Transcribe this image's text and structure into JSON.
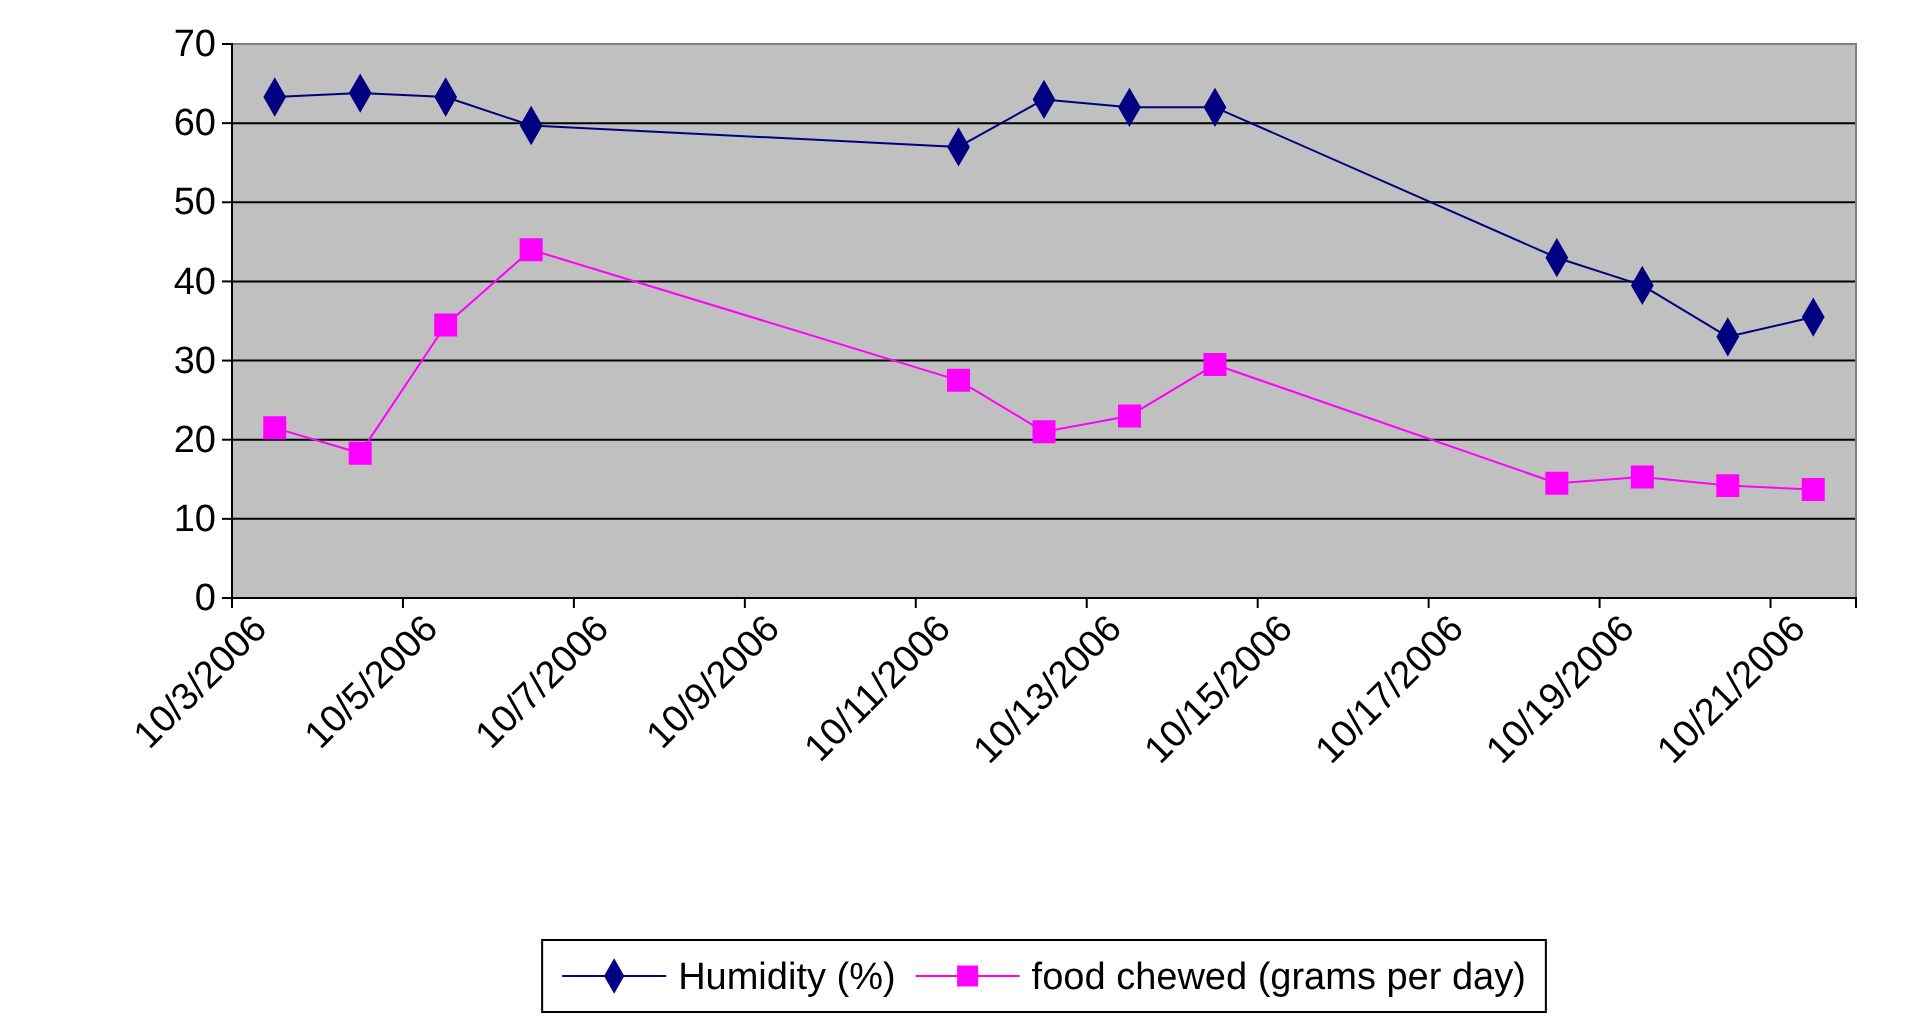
{
  "chart_data": {
    "type": "line",
    "x": [
      "2006-10-03T12:00",
      "2006-10-04T12:00",
      "2006-10-05T12:00",
      "2006-10-06T12:00",
      "2006-10-11T12:00",
      "2006-10-12T12:00",
      "2006-10-13T12:00",
      "2006-10-14T12:00",
      "2006-10-18T12:00",
      "2006-10-19T12:00",
      "2006-10-20T12:00",
      "2006-10-21T12:00"
    ],
    "series": [
      {
        "name": "Humidity (%)",
        "color": "#000080",
        "marker": "diamond",
        "values": [
          63.3,
          63.8,
          63.3,
          59.7,
          57,
          63,
          62,
          62,
          43,
          39.5,
          33,
          35.5
        ]
      },
      {
        "name": "food chewed (grams per day)",
        "color": "#ff00ff",
        "marker": "square",
        "values": [
          21.5,
          18.3,
          34.5,
          44,
          27.5,
          21,
          23,
          29.5,
          14.5,
          15.3,
          14.2,
          13.7
        ]
      }
    ],
    "xlim": [
      "2006-10-03",
      "2006-10-22"
    ],
    "xticks": [
      {
        "value": "2006-10-03",
        "label": "10/3/2006"
      },
      {
        "value": "2006-10-05",
        "label": "10/5/2006"
      },
      {
        "value": "2006-10-07",
        "label": "10/7/2006"
      },
      {
        "value": "2006-10-09",
        "label": "10/9/2006"
      },
      {
        "value": "2006-10-11",
        "label": "10/11/2006"
      },
      {
        "value": "2006-10-13",
        "label": "10/13/2006"
      },
      {
        "value": "2006-10-15",
        "label": "10/15/2006"
      },
      {
        "value": "2006-10-17",
        "label": "10/17/2006"
      },
      {
        "value": "2006-10-19",
        "label": "10/19/2006"
      },
      {
        "value": "2006-10-21",
        "label": "10/21/2006"
      }
    ],
    "ylim": [
      0,
      70
    ],
    "yticks": [
      0,
      10,
      20,
      30,
      40,
      50,
      60,
      70
    ],
    "grid": "y",
    "legend": "bottom",
    "line_style": "solid"
  }
}
